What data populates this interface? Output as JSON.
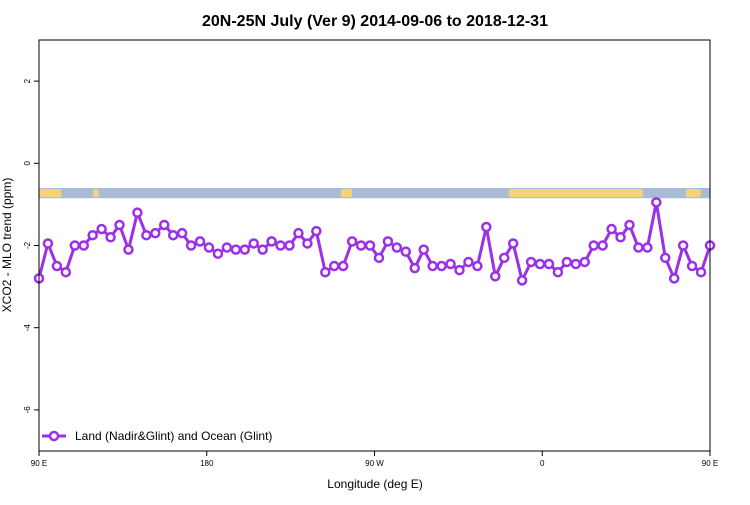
{
  "chart_data": {
    "type": "line",
    "title": "20N-25N July (Ver 9)   2014-09-06 to 2018-12-31",
    "xlabel": "Longitude (deg E)",
    "ylabel": "XCO2 - MLO trend (ppm)",
    "xlim": [
      90,
      450
    ],
    "ylim": [
      -7,
      3
    ],
    "x_ticks": [
      {
        "value": 90,
        "label": "90 E"
      },
      {
        "value": 180,
        "label": "180"
      },
      {
        "value": 270,
        "label": "90 W"
      },
      {
        "value": 360,
        "label": "0"
      },
      {
        "value": 450,
        "label": "90 E"
      },
      {
        "value": 540,
        "label": "180"
      }
    ],
    "y_ticks": [
      {
        "value": 2,
        "label": "2"
      },
      {
        "value": 0,
        "label": "0"
      },
      {
        "value": -2,
        "label": "-2"
      },
      {
        "value": -4,
        "label": "-4"
      },
      {
        "value": -6,
        "label": "-6"
      }
    ],
    "grid": false,
    "land_ocean_band": {
      "y_range": [
        -0.85,
        -0.6
      ],
      "ocean_color": "#a8bcd8",
      "land_color": "#f5d27a",
      "land_segments": [
        [
          90,
          102
        ],
        [
          119,
          122
        ],
        [
          252,
          258
        ],
        [
          342,
          414
        ],
        [
          437,
          445
        ]
      ]
    },
    "series": [
      {
        "name": "Land (Nadir&Glint) and Ocean (Glint)",
        "color": "#9b30e8",
        "x": [
          90,
          94.8,
          99.6,
          104.4,
          109.2,
          114,
          118.8,
          123.6,
          128.4,
          133.2,
          138,
          142.8,
          147.6,
          152.4,
          157.2,
          162,
          166.8,
          171.6,
          176.4,
          181.2,
          186,
          190.8,
          195.6,
          200.4,
          205.2,
          210,
          214.8,
          219.6,
          224.4,
          229.2,
          234,
          238.8,
          243.6,
          248.4,
          253.2,
          258,
          262.8,
          267.6,
          272.4,
          277.2,
          282,
          286.8,
          291.6,
          296.4,
          301.2,
          306,
          310.8,
          315.6,
          320.4,
          325.2,
          330,
          334.8,
          339.6,
          344.4,
          349.2,
          354,
          358.8,
          363.6,
          368.4,
          373.2,
          378,
          382.8,
          387.6,
          392.4,
          397.2,
          402,
          406.8,
          411.6,
          416.4,
          421.2,
          426,
          430.8,
          435.6,
          440.4,
          445.2,
          450
        ],
        "values": [
          -2.8,
          -1.95,
          -2.5,
          -2.65,
          -2.0,
          -2.0,
          -1.75,
          -1.6,
          -1.8,
          -1.5,
          -2.1,
          -1.2,
          -1.75,
          -1.7,
          -1.5,
          -1.75,
          -1.7,
          -2.0,
          -1.9,
          -2.05,
          -2.2,
          -2.05,
          -2.1,
          -2.1,
          -1.95,
          -2.1,
          -1.9,
          -2.0,
          -2.0,
          -1.7,
          -1.95,
          -1.65,
          -2.65,
          -2.5,
          -2.5,
          -1.9,
          -2.0,
          -2.0,
          -2.3,
          -1.9,
          -2.05,
          -2.15,
          -2.55,
          -2.1,
          -2.5,
          -2.5,
          -2.45,
          -2.6,
          -2.4,
          -2.5,
          -1.55,
          -2.75,
          -2.3,
          -1.95,
          -2.85,
          -2.4,
          -2.45,
          -2.45,
          -2.65,
          -2.4,
          -2.45,
          -2.4,
          -2.0,
          -2.0,
          -1.6,
          -1.8,
          -1.5,
          -2.05,
          -2.05,
          -0.95,
          -2.3,
          -2.8,
          -2.0,
          -2.5,
          -2.65,
          -2.0
        ]
      }
    ],
    "legend": {
      "position": "bottom-left",
      "label": "Land (Nadir&Glint) and Ocean (Glint)"
    }
  }
}
